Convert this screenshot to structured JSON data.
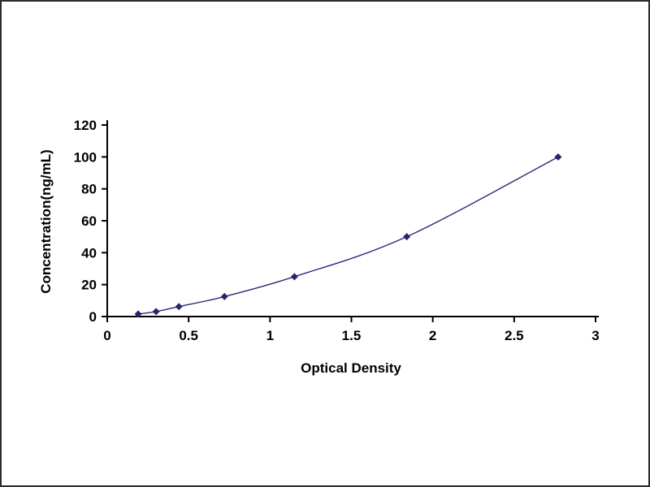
{
  "chart_data": {
    "type": "line",
    "title": "",
    "xlabel": "Optical Density",
    "ylabel": "Concentration(ng/mL)",
    "x": [
      0.19,
      0.3,
      0.44,
      0.72,
      1.15,
      1.84,
      2.77
    ],
    "y": [
      1.56,
      3.12,
      6.25,
      12.5,
      25,
      50,
      100
    ],
    "xlim": [
      0,
      3
    ],
    "ylim": [
      0,
      120
    ],
    "xticks": [
      0,
      0.5,
      1,
      1.5,
      2,
      2.5,
      3
    ],
    "xtick_labels": [
      "0",
      "0.5",
      "1",
      "1.5",
      "2",
      "2.5",
      "3"
    ],
    "yticks": [
      0,
      20,
      40,
      60,
      80,
      100,
      120
    ],
    "ytick_labels": [
      "0",
      "20",
      "40",
      "60",
      "80",
      "100",
      "120"
    ],
    "grid": false,
    "legend_position": "none",
    "line_color": "#2b2b78",
    "marker": "diamond",
    "marker_color": "#26266b",
    "axis_color": "#000000",
    "tick_label_color": "#000000"
  }
}
